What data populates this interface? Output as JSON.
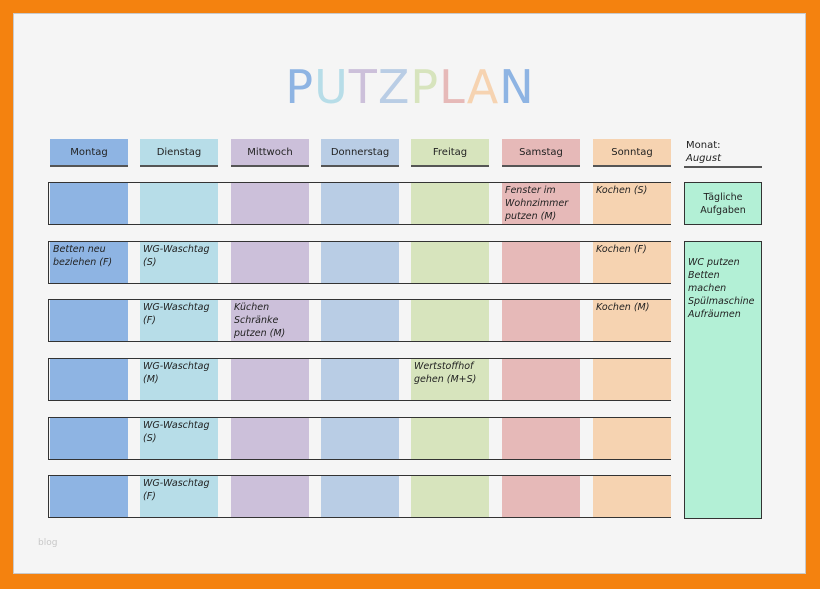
{
  "title": {
    "letters": [
      [
        "P",
        "#8eb4e3"
      ],
      [
        "U",
        "#b7dde8"
      ],
      [
        "T",
        "#ccc0da"
      ],
      [
        "Z",
        "#b9cde5"
      ],
      [
        "P",
        "#d7e4bd"
      ],
      [
        "L",
        "#e6b9b8"
      ],
      [
        "A",
        "#f6d3b1"
      ],
      [
        "N",
        "#8eb4e3"
      ]
    ]
  },
  "days": [
    {
      "label": "Montag",
      "color": "#8eb4e3"
    },
    {
      "label": "Dienstag",
      "color": "#b7dde8"
    },
    {
      "label": "Mittwoch",
      "color": "#ccc0da"
    },
    {
      "label": "Donnerstag",
      "color": "#b9cde5"
    },
    {
      "label": "Freitag",
      "color": "#d7e4bd"
    },
    {
      "label": "Samstag",
      "color": "#e6b9b8"
    },
    {
      "label": "Sonntag",
      "color": "#f6d3b1"
    }
  ],
  "month": {
    "label": "Monat:",
    "value": "August"
  },
  "rows": [
    [
      "",
      "",
      "",
      "",
      "",
      "Fenster im Wohnzimmer putzen (M)",
      "Kochen (S)"
    ],
    [
      "Betten neu beziehen (F)",
      "WG-Waschtag (S)",
      "",
      "",
      "",
      "",
      "Kochen (F)"
    ],
    [
      "",
      "WG-Waschtag (F)",
      "Küchen Schränke putzen (M)",
      "",
      "",
      "",
      "Kochen (M)"
    ],
    [
      "",
      "WG-Waschtag (M)",
      "",
      "",
      "Wertstoffhof gehen (M+S)",
      "",
      ""
    ],
    [
      "",
      "WG-Waschtag (S)",
      "",
      "",
      "",
      "",
      ""
    ],
    [
      "",
      "WG-Waschtag (F)",
      "",
      "",
      "",
      "",
      ""
    ]
  ],
  "daily": {
    "title": "Tägliche Aufgaben",
    "items": [
      "WC putzen",
      "Betten machen",
      "Spülmaschine",
      "Aufräumen"
    ],
    "color": "#b3f0d6"
  },
  "watermark": "blog"
}
